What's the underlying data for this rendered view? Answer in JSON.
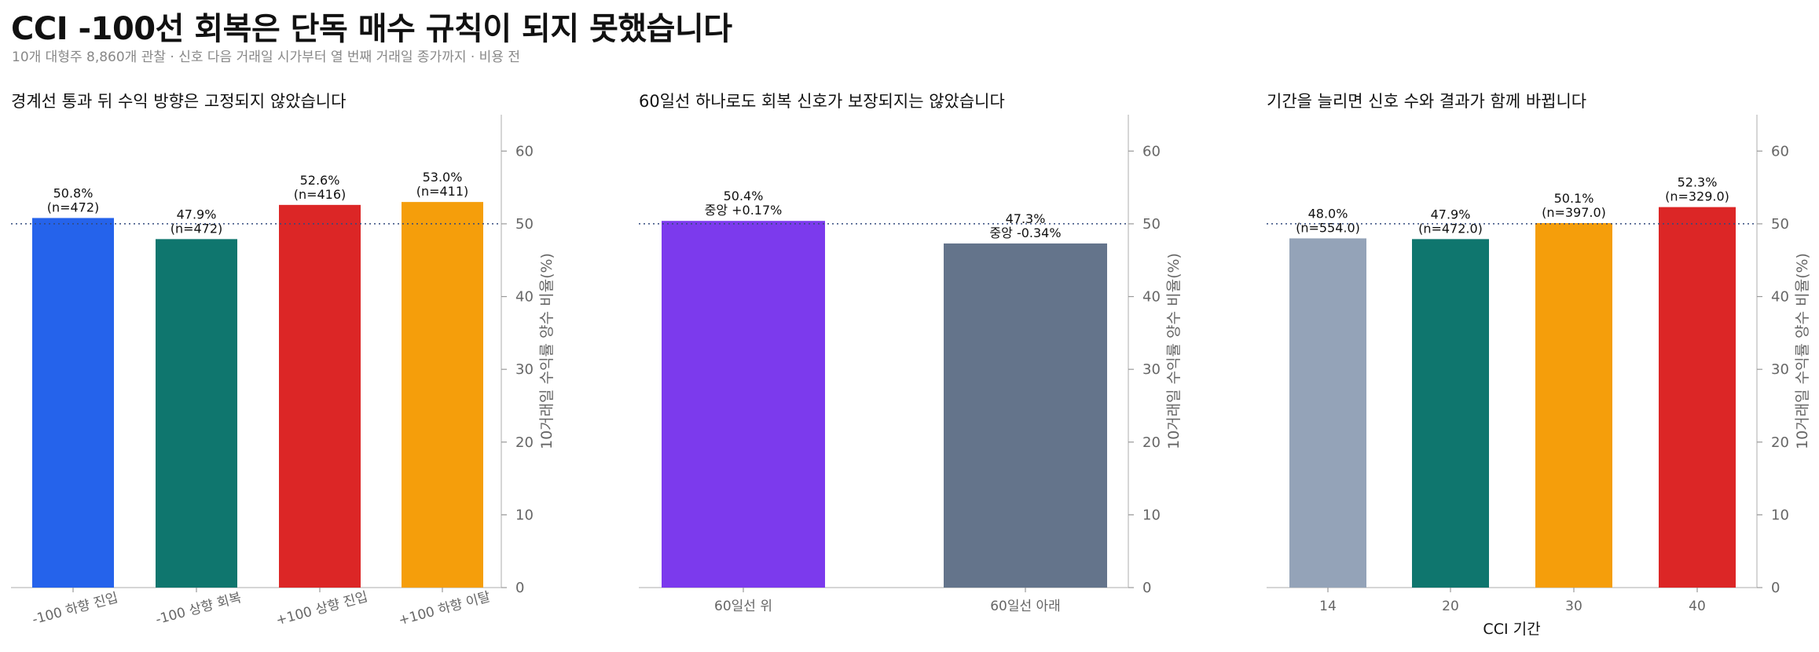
{
  "title": "CCI -100선 회복은 단독 매수 규칙이 되지 못했습니다",
  "subtitle": "10개 대형주 8,860개 관찰 · 신호 다음 거래일 시가부터 열 번째 거래일 종가까지 · 비용 전",
  "colors": {
    "reference_line": "#334a7d",
    "axis": "#c8c8c8",
    "tick_text": "#666666"
  },
  "chart_data": [
    {
      "type": "bar",
      "title": "경계선 통과 뒤 수익 방향은 고정되지 않았습니다",
      "categories": [
        "-100 하향 진입",
        "-100 상향 회복",
        "+100 상향 진입",
        "+100 하향 이탈"
      ],
      "values": [
        50.8,
        47.9,
        52.6,
        53.0
      ],
      "data_labels": [
        [
          "50.8%",
          "(n=472)"
        ],
        [
          "47.9%",
          "(n=472)"
        ],
        [
          "52.6%",
          "(n=416)"
        ],
        [
          "53.0%",
          "(n=411)"
        ]
      ],
      "colors": [
        "#2563eb",
        "#0f766e",
        "#dc2626",
        "#f59e0b"
      ],
      "xlabel": "",
      "ylabel": "10거래일 수익률 양수 비율(%)",
      "ylim": [
        0,
        65
      ],
      "yticks": [
        0,
        10,
        20,
        30,
        40,
        50,
        60
      ],
      "reference_line": 50,
      "tick_rotation": true
    },
    {
      "type": "bar",
      "title": "60일선 하나로도 회복 신호가 보장되지는 않았습니다",
      "categories": [
        "60일선 위",
        "60일선 아래"
      ],
      "values": [
        50.4,
        47.3
      ],
      "data_labels": [
        [
          "50.4%",
          "중앙 +0.17%"
        ],
        [
          "47.3%",
          "중앙 -0.34%"
        ]
      ],
      "colors": [
        "#7c3aed",
        "#64748b"
      ],
      "xlabel": "",
      "ylabel": "10거래일 수익률 양수 비율(%)",
      "ylim": [
        0,
        65
      ],
      "yticks": [
        0,
        10,
        20,
        30,
        40,
        50,
        60
      ],
      "reference_line": 50,
      "tick_rotation": false
    },
    {
      "type": "bar",
      "title": "기간을 늘리면 신호 수와 결과가 함께 바뀝니다",
      "categories": [
        "14",
        "20",
        "30",
        "40"
      ],
      "values": [
        48.0,
        47.9,
        50.1,
        52.3
      ],
      "data_labels": [
        [
          "48.0%",
          "(n=554.0)"
        ],
        [
          "47.9%",
          "(n=472.0)"
        ],
        [
          "50.1%",
          "(n=397.0)"
        ],
        [
          "52.3%",
          "(n=329.0)"
        ]
      ],
      "colors": [
        "#94a3b8",
        "#0f766e",
        "#f59e0b",
        "#dc2626"
      ],
      "xlabel": "CCI 기간",
      "ylabel": "10거래일 수익률 양수 비율(%)",
      "ylim": [
        0,
        65
      ],
      "yticks": [
        0,
        10,
        20,
        30,
        40,
        50,
        60
      ],
      "reference_line": 50,
      "tick_rotation": false
    }
  ]
}
